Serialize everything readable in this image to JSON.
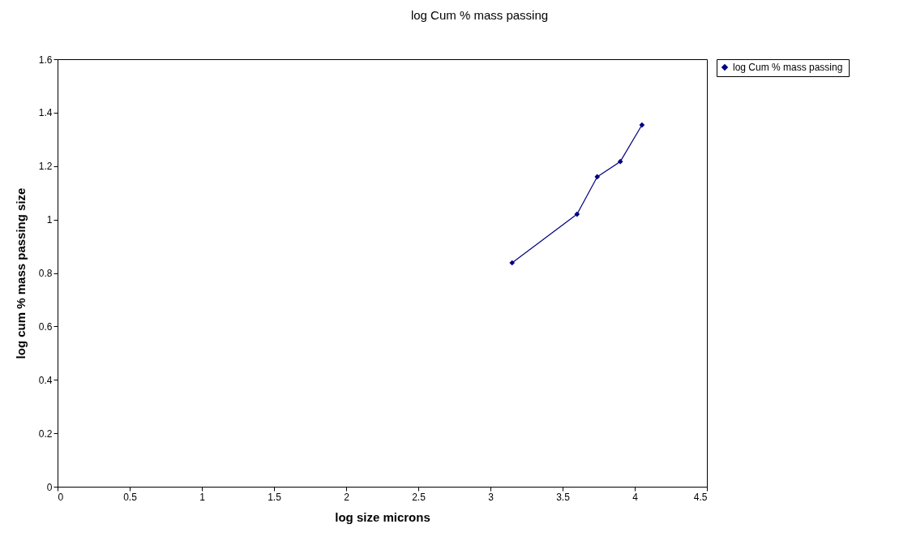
{
  "chart_data": {
    "type": "line",
    "title": "log Cum  % mass passing",
    "xlabel": "log size microns",
    "ylabel": "log cum % mass passing size",
    "x": [
      3.15,
      3.6,
      3.74,
      3.9,
      4.05
    ],
    "series": [
      {
        "name": "log Cum  % mass passing",
        "color": "#000080",
        "values": [
          0.838,
          1.02,
          1.16,
          1.217,
          1.354
        ]
      }
    ],
    "xlim": [
      0,
      4.5
    ],
    "xticks": [
      0,
      0.5,
      1,
      1.5,
      2,
      2.5,
      3,
      3.5,
      4,
      4.5
    ],
    "ylim": [
      0,
      1.6
    ],
    "yticks": [
      0,
      0.2,
      0.4,
      0.6,
      0.8,
      1,
      1.2,
      1.4,
      1.6
    ],
    "grid": false,
    "legend": "right",
    "marker": "diamond",
    "line_style": "solid"
  }
}
